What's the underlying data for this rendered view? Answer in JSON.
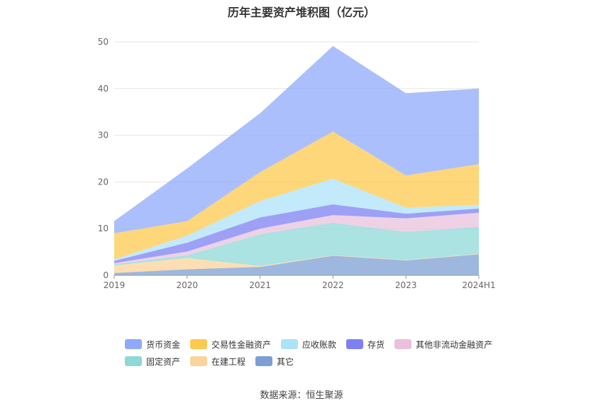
{
  "chart_data": {
    "type": "area",
    "stacked": true,
    "title": "历年主要资产堆积图（亿元）",
    "categories": [
      "2019",
      "2020",
      "2021",
      "2022",
      "2023",
      "2024H1"
    ],
    "ylim": [
      0,
      50
    ],
    "yticks": [
      "0",
      "10",
      "20",
      "30",
      "40",
      "50"
    ],
    "series": [
      {
        "name": "其它",
        "color": "#7d9fd4",
        "values": [
          0.5,
          1.3,
          1.8,
          4.2,
          3.2,
          4.5
        ]
      },
      {
        "name": "在建工程",
        "color": "#fcd39a",
        "values": [
          1.6,
          2.4,
          0.2,
          0.1,
          0.1,
          0.1
        ]
      },
      {
        "name": "固定资产",
        "color": "#8fd8d8",
        "values": [
          0.3,
          0.6,
          6.8,
          7.0,
          6.0,
          5.8
        ]
      },
      {
        "name": "其他非流动金融资产",
        "color": "#eac1dd",
        "values": [
          0.2,
          0.8,
          1.2,
          1.6,
          2.9,
          3.0
        ]
      },
      {
        "name": "存货",
        "color": "#7d80f3",
        "values": [
          0.5,
          1.9,
          2.4,
          2.3,
          1.0,
          0.9
        ]
      },
      {
        "name": "应收账款",
        "color": "#ade3f8",
        "values": [
          0.3,
          1.5,
          3.5,
          5.5,
          1.3,
          0.8
        ]
      },
      {
        "name": "交易性金融资产",
        "color": "#fec94f",
        "values": [
          5.6,
          3.1,
          6.2,
          10.1,
          6.9,
          8.7
        ]
      },
      {
        "name": "货币资金",
        "color": "#8faafc",
        "values": [
          2.6,
          11.3,
          12.6,
          18.3,
          17.6,
          16.2
        ]
      }
    ],
    "legend": {
      "rows": [
        [
          "货币资金",
          "交易性金融资产",
          "应收账款",
          "存货",
          "其他非流动金融资产"
        ],
        [
          "固定资产",
          "在建工程",
          "其它"
        ]
      ]
    }
  },
  "source": "数据来源：恒生聚源"
}
